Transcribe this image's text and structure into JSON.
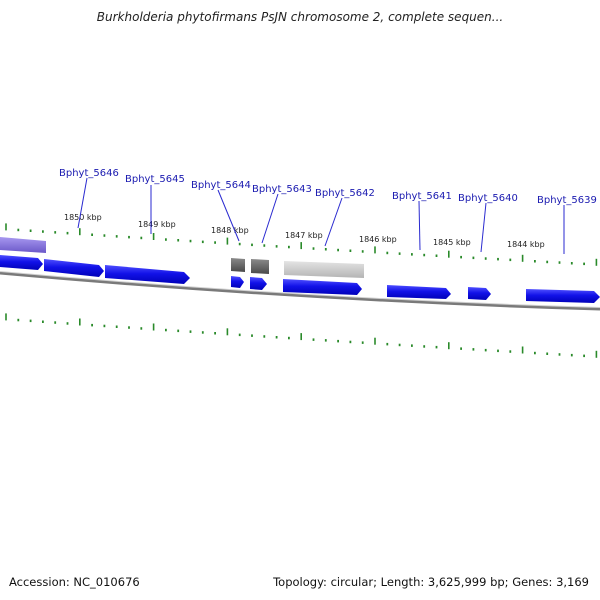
{
  "title": "Burkholderia phytofirmans PsJN chromosome 2, complete sequen...",
  "footer": {
    "accession": "Accession: NC_010676",
    "summary": "Topology: circular; Length: 3,625,999 bp; Genes: 3,169"
  },
  "colors": {
    "gene_fill": "#1010e0",
    "gene_fill_light": "#6a6af0",
    "gene_purple": "#7a6ad8",
    "gene_gray_dark": "#606060",
    "gene_gray_light": "#c8c8c8",
    "backbone": "#777777",
    "tick": "#2a8a2a",
    "label_line": "#2a2ad0"
  },
  "genes": [
    {
      "name": "Bphyt_5646"
    },
    {
      "name": "Bphyt_5645"
    },
    {
      "name": "Bphyt_5644"
    },
    {
      "name": "Bphyt_5643"
    },
    {
      "name": "Bphyt_5642"
    },
    {
      "name": "Bphyt_5641"
    },
    {
      "name": "Bphyt_5640"
    },
    {
      "name": "Bphyt_5639"
    }
  ],
  "scale_ticks": [
    {
      "label": "1850 kbp"
    },
    {
      "label": "1849 kbp"
    },
    {
      "label": "1848 kbp"
    },
    {
      "label": "1847 kbp"
    },
    {
      "label": "1846 kbp"
    },
    {
      "label": "1845 kbp"
    },
    {
      "label": "1844 kbp"
    }
  ]
}
